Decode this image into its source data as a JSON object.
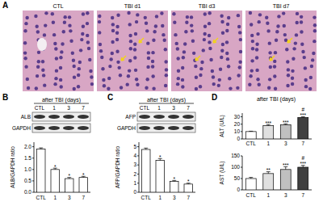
{
  "panels": [
    {
      "letter": "A",
      "labels": [
        "CTL",
        "TBI d1",
        "TBI d3",
        "TBI d7"
      ]
    },
    {
      "letter": "B",
      "header": "after TBI (days)",
      "lanes": [
        "CTL",
        "1",
        "3",
        "7"
      ],
      "bands": [
        "ALB",
        "GAPDH"
      ]
    },
    {
      "letter": "C",
      "header": "after TBI (days)",
      "lanes": [
        "CTL",
        "1",
        "3",
        "7"
      ],
      "bands": [
        "AFP",
        "GAPDH"
      ]
    },
    {
      "letter": "D",
      "header": "after TBI (days)"
    }
  ],
  "chart_data": [
    {
      "type": "bar",
      "ylabel": "ALB/GAPDH ratio",
      "categories": [
        "CTL",
        "1",
        "3",
        "7"
      ],
      "values": [
        1.9,
        1.0,
        0.6,
        0.65
      ],
      "errors": [
        0.05,
        0.06,
        0.05,
        0.05
      ],
      "annotations": [
        null,
        "*",
        "*",
        "*"
      ],
      "colors": [
        "#ffffff",
        "#ffffff",
        "#ffffff",
        "#ffffff"
      ],
      "ylim": [
        0,
        2.2
      ],
      "yticks": [
        {
          "value": 0,
          "label": "0.0"
        },
        {
          "value": 0.5,
          "label": "0.5"
        },
        {
          "value": 1,
          "label": "1.0"
        },
        {
          "value": 1.5,
          "label": "1.5"
        },
        {
          "value": 2,
          "label": "2.0"
        }
      ]
    },
    {
      "type": "bar",
      "ylabel": "AFP/GAPDH ratio",
      "categories": [
        "CTL",
        "1",
        "3",
        "7"
      ],
      "values": [
        4.7,
        3.5,
        1.2,
        0.9
      ],
      "errors": [
        0.15,
        0.2,
        0.1,
        0.1
      ],
      "annotations": [
        null,
        "*",
        "*",
        "*"
      ],
      "colors": [
        "#ffffff",
        "#ffffff",
        "#ffffff",
        "#ffffff"
      ],
      "ylim": [
        0,
        5.5
      ],
      "yticks": [
        0,
        1,
        2,
        3,
        4,
        5
      ]
    },
    {
      "type": "bar",
      "ylabel": "ALT (U/L)",
      "categories": [
        "CTL",
        "1",
        "3",
        "7"
      ],
      "values": [
        10,
        18,
        19,
        29
      ],
      "errors": [
        0.5,
        1.5,
        1.5,
        1.0
      ],
      "annotations": [
        null,
        "***",
        "***",
        "***"
      ],
      "comparison_marks": [
        null,
        null,
        null,
        "#"
      ],
      "colors": [
        "#ffffff",
        "#e0e0e0",
        "#c0c0c0",
        "#404040"
      ],
      "ylim": [
        0,
        35
      ],
      "yticks": [
        0,
        10,
        20,
        30
      ]
    },
    {
      "type": "bar",
      "ylabel": "AST (U/L)",
      "categories": [
        "CTL",
        "1",
        "3",
        "7"
      ],
      "values": [
        50,
        72,
        90,
        100
      ],
      "errors": [
        5,
        8,
        12,
        8
      ],
      "annotations": [
        null,
        "**",
        "***",
        "***"
      ],
      "comparison_marks": [
        null,
        null,
        null,
        "#"
      ],
      "colors": [
        "#ffffff",
        "#e0e0e0",
        "#c0c0c0",
        "#404040"
      ],
      "ylim": [
        0,
        150
      ],
      "yticks": [
        0,
        50,
        100,
        150
      ]
    }
  ]
}
